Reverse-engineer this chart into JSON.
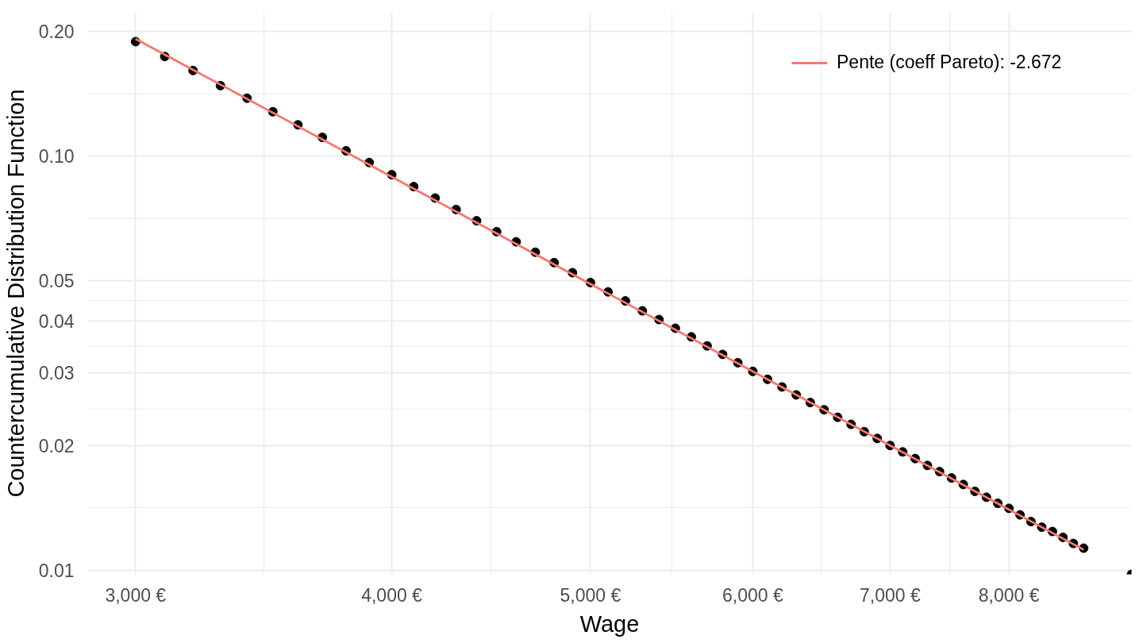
{
  "chart_data": {
    "type": "scatter",
    "xlabel": "Wage",
    "ylabel": "Countercumulative Distribution Function",
    "log": "xy",
    "grid": true,
    "legend": "top right",
    "xlim": [
      2843,
      9180
    ],
    "ylim": [
      0.00977,
      0.2225
    ],
    "xticks": [
      {
        "value": 3000,
        "label": "3,000 €"
      },
      {
        "value": 3464,
        "label": null
      },
      {
        "value": 4000,
        "label": "4,000 €"
      },
      {
        "value": 4472,
        "label": null
      },
      {
        "value": 5000,
        "label": "5,000 €"
      },
      {
        "value": 5477,
        "label": null
      },
      {
        "value": 6000,
        "label": "6,000 €"
      },
      {
        "value": 6481,
        "label": null
      },
      {
        "value": 7000,
        "label": "7,000 €"
      },
      {
        "value": 7483,
        "label": null
      },
      {
        "value": 8000,
        "label": "8,000 €"
      }
    ],
    "yticks": [
      0.01,
      {
        "value": 0.01414,
        "label": null
      },
      0.02,
      {
        "value": 0.02449,
        "label": null
      },
      0.03,
      {
        "value": 0.03464,
        "label": null
      },
      0.04,
      {
        "value": 0.04472,
        "label": null
      },
      0.05,
      {
        "value": 0.07071,
        "label": null
      },
      {
        "value": 0.1,
        "label": "0.10"
      },
      {
        "value": 0.1414,
        "label": null
      },
      {
        "value": 0.2,
        "label": "0.20"
      }
    ],
    "series": [
      {
        "color": "#000000",
        "marker": "circle",
        "x": [
          3000,
          3100,
          3200,
          3300,
          3400,
          3500,
          3600,
          3700,
          3800,
          3900,
          4000,
          4100,
          4200,
          4300,
          4400,
          4500,
          4600,
          4700,
          4800,
          4900,
          5000,
          5100,
          5200,
          5300,
          5400,
          5500,
          5600,
          5700,
          5800,
          5900,
          6000,
          6100,
          6200,
          6300,
          6400,
          6500,
          6600,
          6700,
          6800,
          6900,
          7000,
          7100,
          7200,
          7300,
          7400,
          7500,
          7600,
          7700,
          7800,
          7900,
          8000,
          8100,
          8200,
          8300,
          8400,
          8500,
          8600,
          8700,
          9180
        ],
        "values": [
          0.189,
          0.174,
          0.161,
          0.148,
          0.138,
          0.128,
          0.119,
          0.111,
          0.103,
          0.0965,
          0.0902,
          0.0844,
          0.0792,
          0.0743,
          0.0698,
          0.0657,
          0.0621,
          0.0586,
          0.0553,
          0.0523,
          0.0495,
          0.047,
          0.0447,
          0.0423,
          0.0403,
          0.0384,
          0.0366,
          0.0348,
          0.0332,
          0.0317,
          0.0302,
          0.0289,
          0.0277,
          0.0265,
          0.0254,
          0.0244,
          0.0234,
          0.0225,
          0.0216,
          0.0208,
          0.02,
          0.0193,
          0.0186,
          0.0179,
          0.0173,
          0.0167,
          0.0161,
          0.0155,
          0.015,
          0.0145,
          0.0141,
          0.0136,
          0.0131,
          0.0127,
          0.0124,
          0.012,
          0.0116,
          0.0113,
          0.00977
        ]
      },
      {
        "type": "line",
        "name": "Pente (coeff Pareto): -2.672",
        "color": "#f8766d",
        "line_style": "solid",
        "x": [
          3000,
          8700
        ],
        "values": [
          0.192,
          0.0112
        ]
      }
    ]
  }
}
